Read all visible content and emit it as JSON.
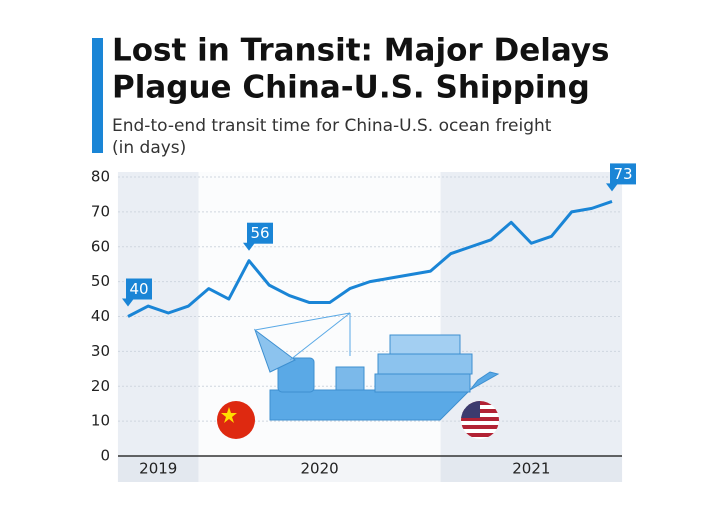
{
  "chart_data": {
    "type": "line",
    "title_lines": [
      "Lost in Transit: Major Delays",
      "Plague China-U.S. Shipping"
    ],
    "subtitle_lines": [
      "End-to-end transit time for China-U.S. ocean freight",
      "(in days)"
    ],
    "categories": [
      null,
      null,
      null,
      null,
      null,
      null,
      null,
      null,
      null,
      null,
      null,
      null,
      null,
      null,
      null,
      null,
      null,
      null,
      null,
      null,
      null,
      null,
      null,
      null,
      null
    ],
    "x_bands": [
      {
        "label": "2019",
        "count": 4
      },
      {
        "label": "2020",
        "count": 12
      },
      {
        "label": "2021",
        "count": 9
      }
    ],
    "series": [
      {
        "color": "#1a85d6",
        "values": [
          40,
          43,
          41,
          43,
          48,
          45,
          56,
          49,
          46,
          44,
          44,
          48,
          50,
          51,
          52,
          53,
          58,
          60,
          62,
          67,
          61,
          63,
          70,
          71,
          73
        ]
      }
    ],
    "labeled_points": [
      0,
      6,
      24
    ],
    "ylim": [
      0,
      80
    ],
    "yticks": [
      0,
      10,
      20,
      30,
      40,
      50,
      60,
      70,
      80
    ]
  }
}
